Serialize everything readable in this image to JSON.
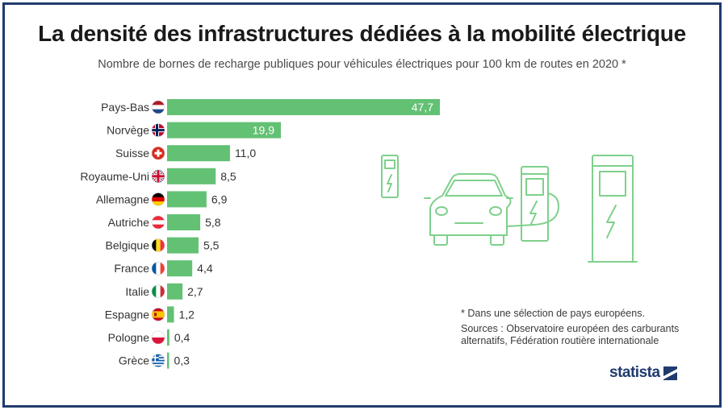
{
  "title": "La densité des infrastructures dédiées à la mobilité électrique",
  "subtitle": "Nombre de bornes de recharge publiques pour véhicules électriques pour 100 km de routes en 2020 *",
  "note": "* Dans une sélection de pays européens.",
  "sources": "Sources : Observatoire européen des carburants alternatifs, Fédération routière internationale",
  "brand": "statista",
  "colors": {
    "bar": "#63c174",
    "frame": "#1f3a6e",
    "illustration": "#7fd08c"
  },
  "chart_data": {
    "type": "bar",
    "orientation": "horizontal",
    "title": "La densité des infrastructures dédiées à la mobilité électrique",
    "subtitle": "Nombre de bornes de recharge publiques pour véhicules électriques pour 100 km de routes en 2020 *",
    "xlabel": "",
    "ylabel": "",
    "grid": false,
    "categories": [
      "Pays-Bas",
      "Norvège",
      "Suisse",
      "Royaume-Uni",
      "Allemagne",
      "Autriche",
      "Belgique",
      "France",
      "Italie",
      "Espagne",
      "Pologne",
      "Grèce"
    ],
    "values": [
      47.7,
      19.9,
      11.0,
      8.5,
      6.9,
      5.8,
      5.5,
      4.4,
      2.7,
      1.2,
      0.4,
      0.3
    ],
    "value_labels": [
      "47,7",
      "19,9",
      "11,0",
      "8,5",
      "6,9",
      "5,8",
      "5,5",
      "4,4",
      "2,7",
      "1,2",
      "0,4",
      "0,3"
    ],
    "flags": [
      "netherlands",
      "norway",
      "switzerland",
      "united-kingdom",
      "germany",
      "austria",
      "belgium",
      "france",
      "italy",
      "spain",
      "poland",
      "greece"
    ],
    "xlim": [
      0,
      47.7
    ]
  }
}
